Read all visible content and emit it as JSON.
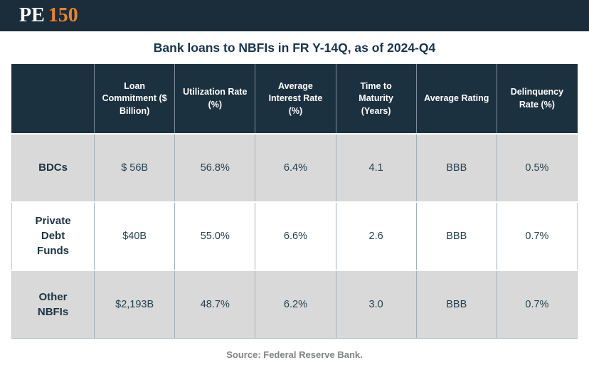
{
  "brand": {
    "logo_pe": "PE",
    "logo_150": "150"
  },
  "title": "Bank loans to NBFIs in FR Y-14Q, as of 2024-Q4",
  "source": "Source: Federal Reserve Bank.",
  "colors": {
    "topbar_navy": "#1b2c3b",
    "header_navy": "#1c3140",
    "logo_orange": "#e8842c",
    "row_gray": "#d9d9d9",
    "title_navy": "#15374e",
    "cell_text": "#24414f",
    "source_gray": "#808285"
  },
  "chart_data": {
    "type": "table",
    "title": "Bank loans to NBFIs in FR Y-14Q, as of 2024-Q4",
    "columns": [
      "",
      "Loan Commitment ($ Billion)",
      "Utilization Rate (%)",
      "Average Interest Rate (%)",
      "Time to Maturity (Years)",
      "Average Rating",
      "Delinquency Rate (%)"
    ],
    "rows": [
      {
        "label": "BDCs",
        "values": [
          "$ 56B",
          "56.8%",
          "6.4%",
          "4.1",
          "BBB",
          "0.5%"
        ]
      },
      {
        "label": "Private Debt Funds",
        "values": [
          "$40B",
          "55.0%",
          "6.6%",
          "2.6",
          "BBB",
          "0.7%"
        ]
      },
      {
        "label": "Other NBFIs",
        "values": [
          "$2,193B",
          "48.7%",
          "6.2%",
          "3.0",
          "BBB",
          "0.7%"
        ]
      }
    ],
    "source": "Source: Federal Reserve Bank.",
    "layout": {
      "striped": true,
      "stripe_pattern": [
        "gray",
        "white",
        "gray"
      ],
      "header_style": "dark-navy, white bold text"
    }
  }
}
